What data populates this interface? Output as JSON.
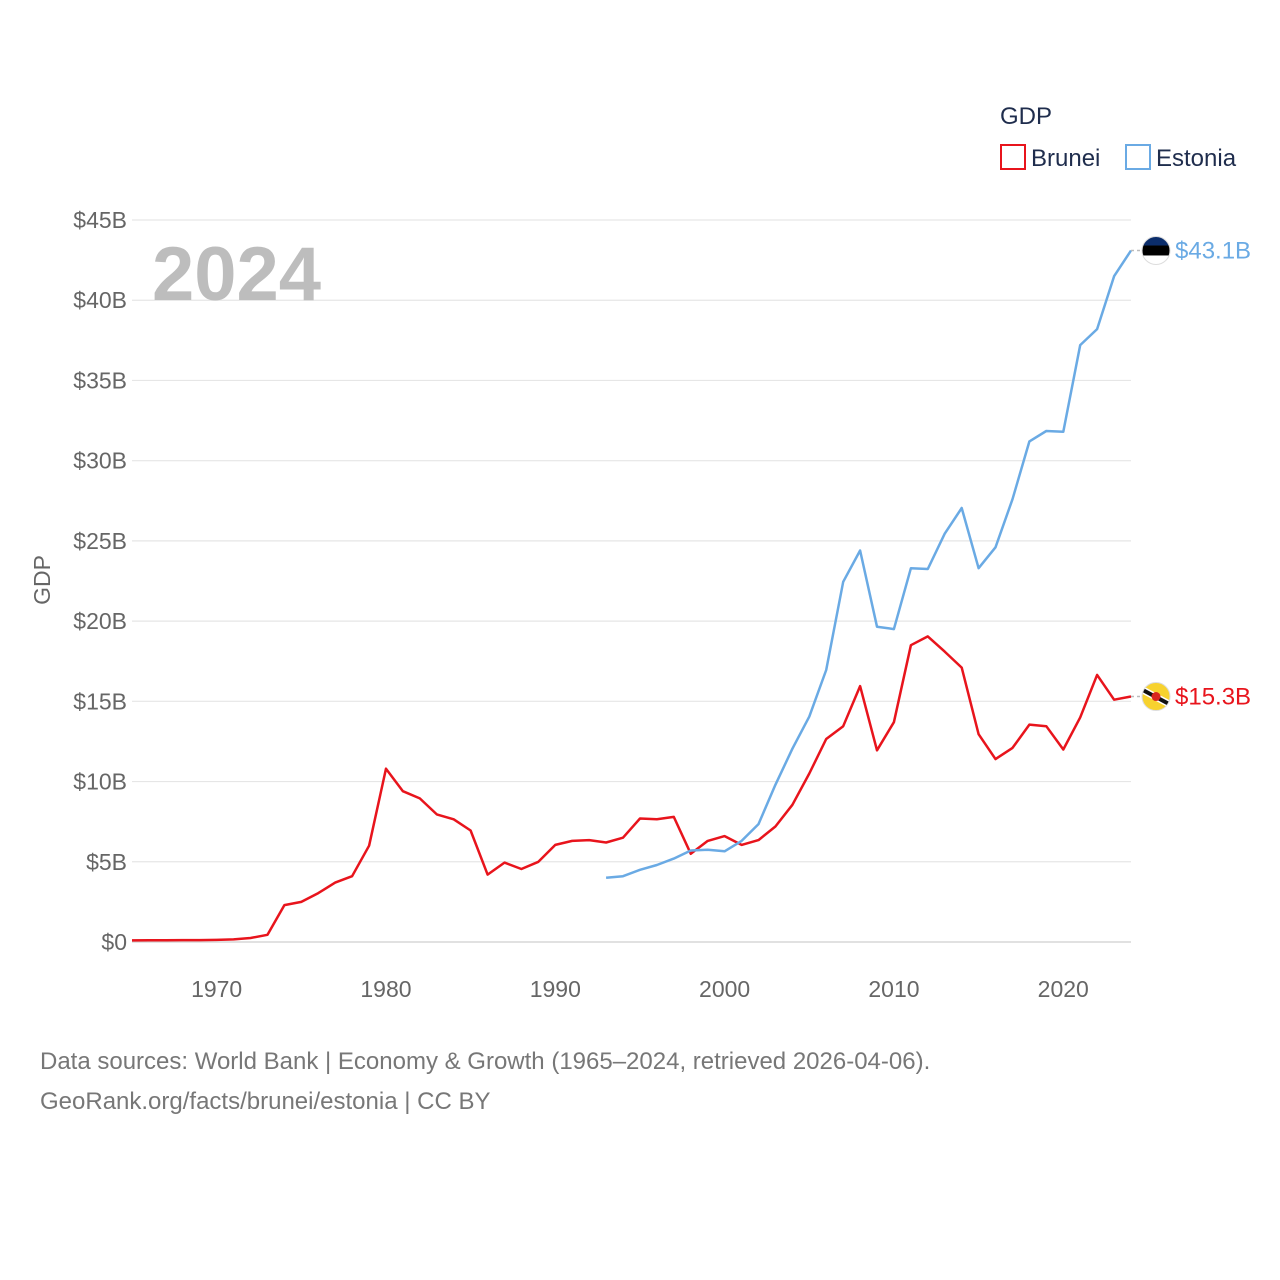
{
  "chart_data": {
    "type": "line",
    "title": "",
    "xlabel": "",
    "ylabel": "GDP",
    "year_watermark": "2024",
    "xlim": [
      1965,
      2024
    ],
    "ylim": [
      0,
      45
    ],
    "y_ticks": [
      {
        "value": 0,
        "label": "$0"
      },
      {
        "value": 5,
        "label": "$5B"
      },
      {
        "value": 10,
        "label": "$10B"
      },
      {
        "value": 15,
        "label": "$15B"
      },
      {
        "value": 20,
        "label": "$20B"
      },
      {
        "value": 25,
        "label": "$25B"
      },
      {
        "value": 30,
        "label": "$30B"
      },
      {
        "value": 35,
        "label": "$35B"
      },
      {
        "value": 40,
        "label": "$40B"
      },
      {
        "value": 45,
        "label": "$45B"
      }
    ],
    "x_ticks": [
      {
        "value": 1970,
        "label": "1970"
      },
      {
        "value": 1980,
        "label": "1980"
      },
      {
        "value": 1990,
        "label": "1990"
      },
      {
        "value": 2000,
        "label": "2000"
      },
      {
        "value": 2010,
        "label": "2010"
      },
      {
        "value": 2020,
        "label": "2020"
      }
    ],
    "grid": true,
    "legend": {
      "title": "GDP",
      "position": "top-right"
    },
    "units": "billion USD",
    "series": [
      {
        "name": "Brunei",
        "color": "#e8141c",
        "end_label": "$15.3B",
        "flag_icon": "brunei-flag-icon",
        "x": [
          1965,
          1966,
          1967,
          1968,
          1969,
          1970,
          1971,
          1972,
          1973,
          1974,
          1975,
          1976,
          1977,
          1978,
          1979,
          1980,
          1981,
          1982,
          1983,
          1984,
          1985,
          1986,
          1987,
          1988,
          1989,
          1990,
          1991,
          1992,
          1993,
          1994,
          1995,
          1996,
          1997,
          1998,
          1999,
          2000,
          2001,
          2002,
          2003,
          2004,
          2005,
          2006,
          2007,
          2008,
          2009,
          2010,
          2011,
          2012,
          2013,
          2014,
          2015,
          2016,
          2017,
          2018,
          2019,
          2020,
          2021,
          2022,
          2023,
          2024
        ],
        "values": [
          0.1,
          0.11,
          0.11,
          0.12,
          0.12,
          0.13,
          0.16,
          0.25,
          0.45,
          2.3,
          2.5,
          3.05,
          3.7,
          4.1,
          6.0,
          10.8,
          9.4,
          8.95,
          7.95,
          7.65,
          6.95,
          4.2,
          4.95,
          4.55,
          5.0,
          6.05,
          6.3,
          6.35,
          6.2,
          6.5,
          7.7,
          7.65,
          7.8,
          5.5,
          6.3,
          6.6,
          6.05,
          6.35,
          7.2,
          8.55,
          10.5,
          12.65,
          13.45,
          15.95,
          11.95,
          13.7,
          18.5,
          19.05,
          18.1,
          17.1,
          12.95,
          11.4,
          12.1,
          13.55,
          13.45,
          12.0,
          14.0,
          16.65,
          15.1,
          15.3
        ]
      },
      {
        "name": "Estonia",
        "color": "#6aaae4",
        "end_label": "$43.1B",
        "flag_icon": "estonia-flag-icon",
        "x": [
          1993,
          1994,
          1995,
          1996,
          1997,
          1998,
          1999,
          2000,
          2001,
          2002,
          2003,
          2004,
          2005,
          2006,
          2007,
          2008,
          2009,
          2010,
          2011,
          2012,
          2013,
          2014,
          2015,
          2016,
          2017,
          2018,
          2019,
          2020,
          2021,
          2022,
          2023,
          2024
        ],
        "values": [
          4.0,
          4.1,
          4.5,
          4.8,
          5.2,
          5.7,
          5.75,
          5.65,
          6.3,
          7.35,
          9.8,
          12.05,
          14.05,
          16.95,
          22.45,
          24.4,
          19.65,
          19.5,
          23.3,
          23.25,
          25.45,
          27.05,
          23.3,
          24.6,
          27.6,
          31.2,
          31.85,
          31.8,
          37.2,
          38.2,
          41.5,
          43.1
        ]
      }
    ]
  },
  "footer": {
    "sources": "Data sources: World Bank | Economy & Growth (1965–2024, retrieved 2026-04-06).",
    "credit": "GeoRank.org/facts/brunei/estonia | CC BY"
  }
}
